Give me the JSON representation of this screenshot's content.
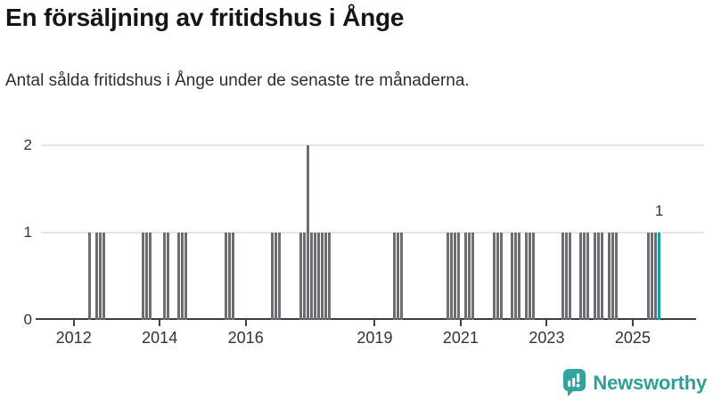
{
  "header": {
    "title": "En försäljning av fritidshus i Ånge",
    "subtitle": "Antal sålda fritidshus i Ånge under de senaste tre månaderna."
  },
  "chart_data": {
    "type": "bar",
    "title": "En försäljning av fritidshus i Ånge",
    "subtitle": "Antal sålda fritidshus i Ånge under de senaste tre månaderna.",
    "xlabel": "",
    "ylabel": "",
    "ylim": [
      0,
      2
    ],
    "yticks": [
      0,
      1,
      2
    ],
    "xticks": [
      2012,
      2014,
      2016,
      2019,
      2021,
      2023,
      2025
    ],
    "grid": "horizontal",
    "legend": "none",
    "x_unit": "month",
    "points": [
      [
        "2012-05",
        1
      ],
      [
        "2012-07",
        1
      ],
      [
        "2012-08",
        1
      ],
      [
        "2012-09",
        1
      ],
      [
        "2013-08",
        1
      ],
      [
        "2013-09",
        1
      ],
      [
        "2013-10",
        1
      ],
      [
        "2014-02",
        1
      ],
      [
        "2014-03",
        1
      ],
      [
        "2014-06",
        1
      ],
      [
        "2014-07",
        1
      ],
      [
        "2014-08",
        1
      ],
      [
        "2015-07",
        1
      ],
      [
        "2015-08",
        1
      ],
      [
        "2015-09",
        1
      ],
      [
        "2016-08",
        1
      ],
      [
        "2016-09",
        1
      ],
      [
        "2016-10",
        1
      ],
      [
        "2017-04",
        1
      ],
      [
        "2017-05",
        1
      ],
      [
        "2017-06",
        2
      ],
      [
        "2017-07",
        1
      ],
      [
        "2017-08",
        1
      ],
      [
        "2017-09",
        1
      ],
      [
        "2017-10",
        1
      ],
      [
        "2017-11",
        1
      ],
      [
        "2017-12",
        1
      ],
      [
        "2019-06",
        1
      ],
      [
        "2019-07",
        1
      ],
      [
        "2019-08",
        1
      ],
      [
        "2020-09",
        1
      ],
      [
        "2020-10",
        1
      ],
      [
        "2020-11",
        1
      ],
      [
        "2020-12",
        1
      ],
      [
        "2021-02",
        1
      ],
      [
        "2021-03",
        1
      ],
      [
        "2021-04",
        1
      ],
      [
        "2021-10",
        1
      ],
      [
        "2021-11",
        1
      ],
      [
        "2021-12",
        1
      ],
      [
        "2022-03",
        1
      ],
      [
        "2022-04",
        1
      ],
      [
        "2022-05",
        1
      ],
      [
        "2022-07",
        1
      ],
      [
        "2022-08",
        1
      ],
      [
        "2022-09",
        1
      ],
      [
        "2023-05",
        1
      ],
      [
        "2023-06",
        1
      ],
      [
        "2023-07",
        1
      ],
      [
        "2023-10",
        1
      ],
      [
        "2023-11",
        1
      ],
      [
        "2023-12",
        1
      ],
      [
        "2024-02",
        1
      ],
      [
        "2024-03",
        1
      ],
      [
        "2024-04",
        1
      ],
      [
        "2024-06",
        1
      ],
      [
        "2024-07",
        1
      ],
      [
        "2024-08",
        1
      ],
      [
        "2025-05",
        1
      ],
      [
        "2025-06",
        1
      ],
      [
        "2025-07",
        1
      ],
      [
        "2025-08",
        1
      ]
    ],
    "highlight_month": "2025-08",
    "annotation": {
      "month": "2025-08",
      "text": "1"
    },
    "colors": {
      "bar": "#6e6e72",
      "highlight": "#0ba3a4",
      "gridline": "#e6e6e6",
      "axis": "#3f3f3f",
      "tick_text": "#333333"
    }
  },
  "branding": {
    "name": "Newsworthy",
    "logo_icon": "bar-chart-speech-bubble-icon",
    "color": "#2f9f99",
    "icon_color": "#35a29b"
  }
}
